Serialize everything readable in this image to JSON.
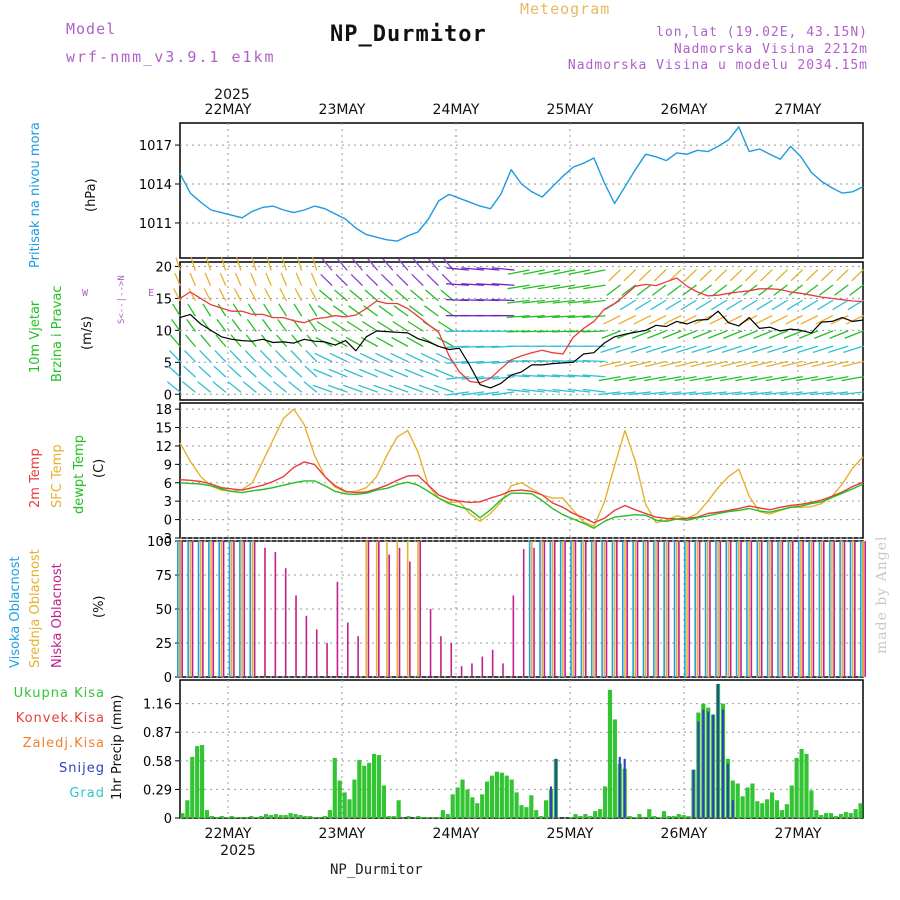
{
  "header": {
    "model_label": "Model",
    "model_value": "wrf-nmm_v3.9.1 e1km",
    "title": "NP_Durmitor",
    "subtitle": "Meteogram",
    "info_line1": "lon,lat (19.02E, 43.15N)",
    "info_line2": "Nadmorska Visina 2212m",
    "info_line3": "Nadmorska Visina u modelu 2034.15m",
    "footer": "NP_Durmitor",
    "watermark": "made by Angel"
  },
  "legends": {
    "pressure": [
      "Pritisak na nivou mora",
      "(hPa)"
    ],
    "wind": [
      "10m Vjetar",
      "Brzina i Pravac",
      "(m/s)"
    ],
    "temp": [
      "2m Temp",
      "SFC Temp",
      "dewpt Temp",
      "(C)"
    ],
    "cloud": [
      "Visoka Oblacnost",
      "Srednja Oblacnost",
      "Niska Oblacnost",
      "(%)"
    ],
    "precip": [
      "Ukupna Kisa",
      "Konvek.Kisa",
      "Zaledj.Kisa",
      "Snijeg",
      "Grad",
      "1hr Precip (mm)"
    ],
    "compass": [
      "N",
      "W",
      "E",
      "S"
    ]
  },
  "colors": {
    "pressure": "#1e9be0",
    "temp2m": "#e83c3c",
    "sfc": "#e8b030",
    "dewpt": "#22c022",
    "high_cloud": "#22a0e0",
    "mid_cloud": "#e8b030",
    "low_cloud": "#c0208c",
    "precip_total": "#33c433",
    "precip_conv": "#e83c3c",
    "precip_frz": "#f08030",
    "snow": "#3040c0",
    "hail": "#30c8c8"
  },
  "chart_data": [
    {
      "type": "line",
      "ylabel": "Pritisak na nivou mora (hPa)",
      "x_ticks": [
        "22MAY",
        "23MAY",
        "24MAY",
        "25MAY",
        "26MAY",
        "27MAY"
      ],
      "x_year": "2025",
      "x_range_hours": [
        0,
        144
      ],
      "yticks": [
        1011,
        1014,
        1017
      ],
      "ylim": [
        1008.3,
        1018.7
      ],
      "grid": true,
      "series": [
        {
          "name": "Pritisak na nivou mora",
          "values": [
            1014.8,
            1013.3,
            1012.6,
            1012.0,
            1011.8,
            1011.6,
            1011.4,
            1011.9,
            1012.2,
            1012.3,
            1012.0,
            1011.8,
            1012.0,
            1012.3,
            1012.1,
            1011.7,
            1011.3,
            1010.6,
            1010.1,
            1009.9,
            1009.7,
            1009.6,
            1010.0,
            1010.3,
            1011.3,
            1012.7,
            1013.2,
            1012.9,
            1012.6,
            1012.3,
            1012.1,
            1013.2,
            1015.1,
            1014.0,
            1013.4,
            1013.0,
            1013.8,
            1014.6,
            1015.3,
            1015.6,
            1016.0,
            1014.1,
            1012.5,
            1013.8,
            1015.1,
            1016.3,
            1016.1,
            1015.8,
            1016.4,
            1016.3,
            1016.6,
            1016.5,
            1016.9,
            1017.4,
            1018.4,
            1016.5,
            1016.7,
            1016.3,
            1015.9,
            1016.9,
            1016.1,
            1014.9,
            1014.2,
            1013.7,
            1013.3,
            1013.4,
            1013.8
          ]
        }
      ]
    },
    {
      "type": "line",
      "ylabel": "10m Vjetar Brzina i Pravac (m/s)",
      "yticks": [
        0,
        5,
        10,
        15,
        20
      ],
      "ylim": [
        -0.9,
        20.7
      ],
      "grid": true,
      "series": [
        {
          "name": "Brzina",
          "color": "#000000",
          "values": [
            12,
            12.5,
            11,
            10,
            9,
            8.6,
            8.4,
            8.3,
            8.6,
            8.1,
            8.2,
            8.0,
            8.6,
            8.3,
            8.2,
            7.7,
            8.4,
            6.8,
            9.0,
            9.9,
            9.8,
            9.7,
            9.6,
            8.7,
            8.2,
            7.5,
            7.0,
            7.2,
            4.5,
            1.5,
            1.0,
            1.7,
            3.0,
            3.5,
            4.6,
            4.6,
            4.8,
            4.9,
            5.0,
            6.3,
            6.5,
            8.0,
            9.0,
            9.4,
            9.7,
            10.0,
            10.8,
            10.6,
            11.4,
            11.0,
            11.6,
            11.7,
            13.0,
            11.2,
            10.7,
            12.0,
            10.3,
            10.5,
            9.9,
            10.2,
            10.0,
            9.6,
            11.3,
            11.4,
            12.0,
            11.4,
            11.6
          ]
        },
        {
          "name": "Udari",
          "color": "#e83c3c",
          "values": [
            15,
            16,
            15,
            14,
            13.5,
            13,
            13,
            12.5,
            12.5,
            12,
            12,
            11.5,
            11.2,
            11.8,
            12,
            12.3,
            12.1,
            12.4,
            13.4,
            14.6,
            14.2,
            14.2,
            13.4,
            12.2,
            10.9,
            9.7,
            6.0,
            3.5,
            2.0,
            1.8,
            2.5,
            4.0,
            5.4,
            6.0,
            6.5,
            6.9,
            6.5,
            6.3,
            8.9,
            10.3,
            11.4,
            13.3,
            14.2,
            15.5,
            16.9,
            17.2,
            17.0,
            17.6,
            18.2,
            16.9,
            16.0,
            15.4,
            15.5,
            15.8,
            16.0,
            16.2,
            16.5,
            16.5,
            16.4,
            16.0,
            15.8,
            15.5,
            15.2,
            15.0,
            14.8,
            14.6,
            14.5
          ]
        }
      ]
    },
    {
      "type": "line",
      "ylabel": "2m Temp / SFC Temp / dewpt Temp (C)",
      "yticks": [
        -3,
        0,
        3,
        6,
        9,
        12,
        15,
        18
      ],
      "ylim": [
        -3,
        19
      ],
      "grid": true,
      "series": [
        {
          "name": "2m Temp",
          "values": [
            6.5,
            6.4,
            6.2,
            5.8,
            5.2,
            5.0,
            4.8,
            5.2,
            5.6,
            6.2,
            7.0,
            8.5,
            9.4,
            9.0,
            7.0,
            5.5,
            4.6,
            4.4,
            4.5,
            5.0,
            5.6,
            6.4,
            7.1,
            7.2,
            5.6,
            4.0,
            3.3,
            3.0,
            2.8,
            2.9,
            3.5,
            4.0,
            4.7,
            4.8,
            4.6,
            4.0,
            2.7,
            2.0,
            1.0,
            0.3,
            -0.5,
            0.2,
            1.5,
            2.3,
            1.6,
            1.0,
            0.4,
            0.2,
            0.1,
            0.2,
            0.4,
            1.0,
            1.2,
            1.5,
            1.8,
            2.2,
            1.9,
            1.6,
            2.0,
            2.3,
            2.5,
            2.8,
            3.2,
            3.8,
            4.5,
            5.4,
            6.1
          ]
        },
        {
          "name": "SFC Temp",
          "values": [
            12.5,
            9.5,
            7.0,
            5.5,
            4.8,
            4.6,
            4.9,
            6.0,
            9.5,
            13.0,
            16.5,
            18.0,
            15.5,
            10.5,
            7.0,
            5.3,
            4.5,
            4.6,
            5.2,
            7.0,
            10.5,
            13.5,
            14.5,
            11.0,
            5.5,
            3.5,
            2.8,
            2.9,
            1.0,
            -0.3,
            1.0,
            2.8,
            5.5,
            6.0,
            5.0,
            4.0,
            3.5,
            3.5,
            1.5,
            -0.4,
            -1.1,
            2.8,
            8.8,
            14.5,
            9.5,
            2.5,
            -0.5,
            -0.1,
            0.6,
            0.2,
            1.0,
            3.0,
            5.2,
            7.0,
            8.2,
            3.8,
            1.3,
            0.9,
            1.5,
            2.0,
            2.0,
            2.1,
            2.6,
            3.8,
            5.8,
            8.4,
            10.2
          ]
        },
        {
          "name": "dewpt Temp",
          "values": [
            6.0,
            5.9,
            5.8,
            5.5,
            5.0,
            4.6,
            4.4,
            4.7,
            4.9,
            5.2,
            5.6,
            6.0,
            6.3,
            6.3,
            5.5,
            4.6,
            4.2,
            4.1,
            4.3,
            4.8,
            5.1,
            5.7,
            6.1,
            5.6,
            4.6,
            3.5,
            2.6,
            2.1,
            1.6,
            0.3,
            1.6,
            3.2,
            4.3,
            4.3,
            4.2,
            3.1,
            1.8,
            0.8,
            0.1,
            -0.6,
            -1.4,
            -0.3,
            0.4,
            0.6,
            0.8,
            0.7,
            -0.1,
            -0.3,
            0.1,
            -0.1,
            0.3,
            0.6,
            1.0,
            1.3,
            1.5,
            1.8,
            1.4,
            1.2,
            1.6,
            2.0,
            2.2,
            2.6,
            2.9,
            3.6,
            4.3,
            5.0,
            5.8
          ]
        }
      ]
    },
    {
      "type": "bar",
      "ylabel": "Visoka / Srednja / Niska Oblacnost (%)",
      "yticks": [
        0,
        25,
        50,
        75,
        100
      ],
      "ylim": [
        0,
        100
      ],
      "grid": true,
      "series": [
        {
          "name": "Visoka Oblacnost",
          "values": [
            100,
            100,
            100,
            100,
            100,
            100,
            100,
            100,
            0,
            0,
            0,
            0,
            0,
            0,
            0,
            0,
            0,
            0,
            0,
            0,
            0,
            0,
            0,
            0,
            0,
            0,
            0,
            0,
            0,
            0,
            0,
            0,
            0,
            0,
            100,
            100,
            100,
            100,
            100,
            100,
            100,
            100,
            100,
            100,
            100,
            100,
            100,
            100,
            100,
            100,
            100,
            100,
            100,
            100,
            100,
            100,
            100,
            100,
            100,
            100,
            100,
            100,
            100,
            100,
            100,
            100,
            100
          ]
        },
        {
          "name": "Srednja Oblacnost",
          "values": [
            100,
            100,
            100,
            100,
            100,
            100,
            100,
            100,
            0,
            0,
            0,
            0,
            0,
            0,
            0,
            0,
            0,
            0,
            100,
            100,
            100,
            100,
            100,
            100,
            0,
            0,
            0,
            0,
            0,
            0,
            0,
            0,
            0,
            0,
            100,
            100,
            100,
            100,
            100,
            100,
            100,
            100,
            100,
            100,
            100,
            100,
            100,
            100,
            100,
            100,
            100,
            100,
            100,
            100,
            100,
            100,
            100,
            100,
            100,
            100,
            100,
            100,
            100,
            100,
            100,
            100,
            100
          ]
        },
        {
          "name": "Niska Oblacnost",
          "values": [
            100,
            100,
            100,
            100,
            100,
            100,
            100,
            100,
            95,
            92,
            80,
            60,
            45,
            35,
            25,
            70,
            40,
            30,
            100,
            100,
            90,
            95,
            85,
            100,
            50,
            30,
            25,
            8,
            10,
            15,
            20,
            10,
            60,
            94,
            95,
            100,
            100,
            100,
            100,
            100,
            100,
            100,
            100,
            100,
            100,
            100,
            100,
            100,
            100,
            100,
            100,
            100,
            100,
            100,
            100,
            100,
            100,
            100,
            100,
            100,
            100,
            100,
            100,
            100,
            100,
            100,
            100
          ]
        }
      ]
    },
    {
      "type": "bar",
      "ylabel": "1hr Precip (mm)",
      "yticks": [
        0,
        0.29,
        0.58,
        0.87,
        1.16
      ],
      "ylim": [
        0,
        1.4
      ],
      "grid": true,
      "series": [
        {
          "name": "Ukupna Kisa",
          "values": [
            0.05,
            0.18,
            0.62,
            0.73,
            0.74,
            0.08,
            0.02,
            0.01,
            0.02,
            0.01,
            0.02,
            0.01,
            0.01,
            0.01,
            0.02,
            0.01,
            0.02,
            0.04,
            0.03,
            0.04,
            0.03,
            0.03,
            0.05,
            0.04,
            0.03,
            0.02,
            0.02,
            0.01,
            0.01,
            0.02,
            0.08,
            0.61,
            0.38,
            0.26,
            0.19,
            0.39,
            0.59,
            0.53,
            0.56,
            0.65,
            0.64,
            0.33,
            0.02,
            0.02,
            0.18,
            0.0,
            0.02,
            0.0,
            0.02,
            0.01,
            0.01,
            0.01,
            0.01,
            0.08,
            0.04,
            0.24,
            0.31,
            0.39,
            0.29,
            0.21,
            0.15,
            0.24,
            0.37,
            0.43,
            0.47,
            0.46,
            0.43,
            0.39,
            0.26,
            0.13,
            0.11,
            0.23,
            0.08,
            0.02,
            0.18,
            0.29,
            0.6,
            0.0,
            0.0,
            0.01,
            0.04,
            0.02,
            0.04,
            0.02,
            0.07,
            0.09,
            0.32,
            1.3,
            1.0,
            0.55,
            0.5,
            0.02,
            0.01,
            0.04,
            0.01,
            0.09,
            0.02,
            0.01,
            0.07,
            0.02,
            0.02,
            0.04,
            0.03,
            0.02,
            0.49,
            1.07,
            1.16,
            1.12,
            1.05,
            1.36,
            1.16,
            0.6,
            0.38,
            0.35,
            0.22,
            0.31,
            0.35,
            0.17,
            0.15,
            0.19,
            0.26,
            0.18,
            0.08,
            0.14,
            0.33,
            0.61,
            0.7,
            0.65,
            0.28,
            0.08,
            0.03,
            0.05,
            0.05,
            0.02,
            0.04,
            0.06,
            0.05,
            0.09,
            0.15
          ]
        },
        {
          "name": "Snijeg",
          "values": [
            0,
            0,
            0,
            0,
            0,
            0,
            0,
            0,
            0,
            0,
            0,
            0,
            0,
            0,
            0,
            0,
            0,
            0,
            0,
            0,
            0,
            0,
            0,
            0,
            0,
            0,
            0,
            0,
            0,
            0,
            0,
            0,
            0,
            0,
            0,
            0,
            0,
            0,
            0,
            0,
            0,
            0,
            0,
            0,
            0,
            0,
            0,
            0,
            0,
            0,
            0,
            0,
            0,
            0,
            0,
            0,
            0,
            0,
            0,
            0,
            0,
            0,
            0,
            0,
            0,
            0,
            0,
            0,
            0,
            0,
            0,
            0,
            0,
            0,
            0,
            0.32,
            0.6,
            0,
            0,
            0,
            0,
            0,
            0,
            0,
            0,
            0,
            0,
            0,
            0,
            0.62,
            0.6,
            0,
            0,
            0,
            0,
            0,
            0,
            0,
            0,
            0,
            0,
            0,
            0,
            0,
            0.49,
            0.98,
            1.1,
            1.08,
            1.05,
            1.36,
            1.1,
            0.55,
            0.18,
            0,
            0,
            0,
            0,
            0,
            0,
            0,
            0,
            0,
            0,
            0,
            0,
            0,
            0,
            0,
            0,
            0,
            0,
            0,
            0,
            0,
            0,
            0,
            0,
            0,
            0
          ]
        }
      ]
    }
  ]
}
